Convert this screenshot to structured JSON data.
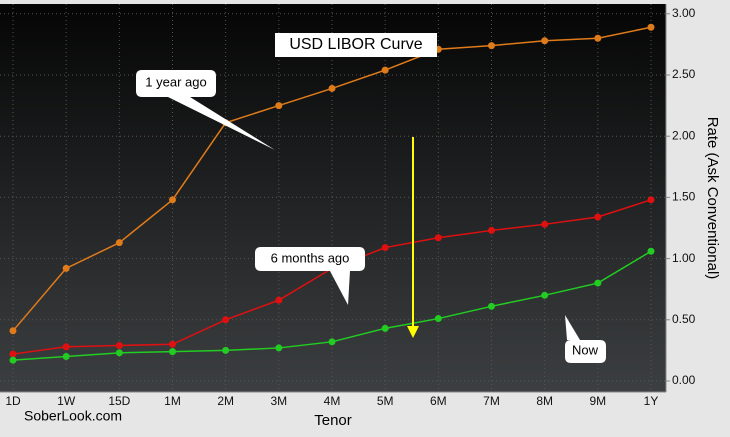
{
  "chart_data": {
    "type": "line",
    "title": "USD LIBOR Curve",
    "x_label": "Tenor",
    "y_label": "Rate (Ask Conventional)",
    "categories": [
      "1D",
      "1W",
      "15D",
      "1M",
      "2M",
      "3M",
      "4M",
      "5M",
      "6M",
      "7M",
      "8M",
      "9M",
      "1Y"
    ],
    "series": [
      {
        "name": "1 year ago",
        "color": "#e07b1a",
        "values": [
          0.41,
          0.92,
          1.13,
          1.48,
          2.11,
          2.25,
          2.39,
          2.54,
          2.71,
          2.74,
          2.78,
          2.8,
          2.89
        ]
      },
      {
        "name": "6 months ago",
        "color": "#e01010",
        "values": [
          0.22,
          0.28,
          0.29,
          0.3,
          0.5,
          0.66,
          0.92,
          1.09,
          1.17,
          1.23,
          1.28,
          1.34,
          1.48
        ]
      },
      {
        "name": "Now",
        "color": "#22cc22",
        "values": [
          0.17,
          0.2,
          0.23,
          0.24,
          0.25,
          0.27,
          0.32,
          0.43,
          0.51,
          0.61,
          0.7,
          0.8,
          1.06
        ]
      }
    ],
    "ylim": [
      -0.09,
      3.08
    ],
    "yticks": [
      {
        "value": 0,
        "label": "0.00"
      },
      {
        "value": 0.5,
        "label": "0.50"
      },
      {
        "value": 1,
        "label": "1.00"
      },
      {
        "value": 1.5,
        "label": "1.50"
      },
      {
        "value": 2,
        "label": "2.00"
      },
      {
        "value": 2.5,
        "label": "2.50"
      },
      {
        "value": 3,
        "label": "3.00"
      }
    ],
    "grid": true,
    "watermark": "SoberLook.com"
  }
}
